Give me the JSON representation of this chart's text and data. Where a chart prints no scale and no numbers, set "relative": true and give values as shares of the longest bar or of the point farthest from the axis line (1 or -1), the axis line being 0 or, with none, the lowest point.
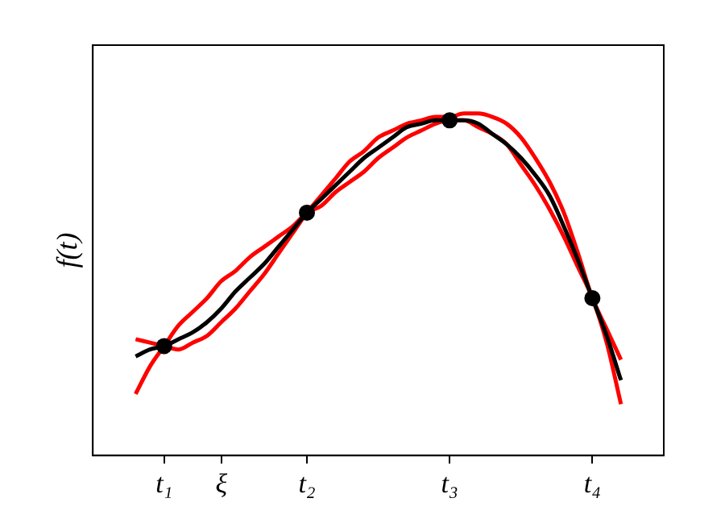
{
  "chart_data": {
    "type": "line",
    "ylabel": "f(t)",
    "relative": true,
    "grid": false,
    "legend": false,
    "tick_labels": "x",
    "categories": [
      null,
      null,
      null,
      null,
      null,
      "t₁",
      null,
      null,
      null,
      "ξ",
      null,
      null,
      null,
      null,
      null,
      "t₂",
      null,
      null,
      null,
      null,
      null,
      null,
      null,
      null,
      null,
      "t₃",
      null,
      null,
      null,
      null,
      null,
      null,
      null,
      null,
      null,
      "t₄",
      null,
      null,
      null,
      null,
      null
    ],
    "series": [
      {
        "color": "#000000",
        "marker": "none",
        "line_style": "solid",
        "values": [
          null,
          null,
          null,
          0.29,
          0.31,
          0.32,
          0.34,
          0.36,
          0.39,
          0.43,
          0.48,
          0.52,
          0.56,
          0.61,
          0.66,
          0.71,
          0.75,
          0.79,
          0.83,
          0.87,
          0.9,
          0.93,
          0.96,
          0.97,
          0.98,
          0.98,
          0.98,
          0.97,
          0.94,
          0.91,
          0.87,
          0.82,
          0.76,
          0.67,
          0.57,
          0.46,
          0.35,
          0.22,
          null,
          null,
          null
        ]
      },
      {
        "color": "#ff0000",
        "marker": "none",
        "line_style": "solid",
        "values": [
          null,
          null,
          null,
          0.18,
          0.26,
          0.32,
          0.38,
          0.42,
          0.46,
          0.51,
          0.54,
          0.58,
          0.61,
          0.64,
          0.67,
          0.71,
          0.73,
          0.77,
          0.8,
          0.83,
          0.87,
          0.9,
          0.93,
          0.95,
          0.97,
          0.98,
          0.98,
          0.96,
          0.94,
          0.91,
          0.85,
          0.79,
          0.72,
          0.64,
          0.55,
          0.46,
          0.33,
          0.15,
          null,
          null,
          null
        ]
      },
      {
        "color": "#ff0000",
        "marker": "none",
        "line_style": "solid",
        "values": [
          null,
          null,
          null,
          0.34,
          0.33,
          0.32,
          0.31,
          0.33,
          0.35,
          0.39,
          0.43,
          0.48,
          0.53,
          0.59,
          0.65,
          0.71,
          0.76,
          0.81,
          0.86,
          0.89,
          0.93,
          0.95,
          0.97,
          0.98,
          0.99,
          0.99,
          1.0,
          1.0,
          0.99,
          0.97,
          0.93,
          0.87,
          0.8,
          0.71,
          0.59,
          0.46,
          0.37,
          0.28,
          null,
          null,
          null
        ]
      },
      {
        "type": "scatter",
        "color": "#000000",
        "marker": "circle",
        "values": [
          null,
          null,
          null,
          null,
          null,
          0.32,
          null,
          null,
          null,
          null,
          null,
          null,
          null,
          null,
          null,
          0.71,
          null,
          null,
          null,
          null,
          null,
          null,
          null,
          null,
          null,
          0.98,
          null,
          null,
          null,
          null,
          null,
          null,
          null,
          null,
          null,
          0.46,
          null,
          null,
          null,
          null,
          null
        ]
      }
    ]
  }
}
